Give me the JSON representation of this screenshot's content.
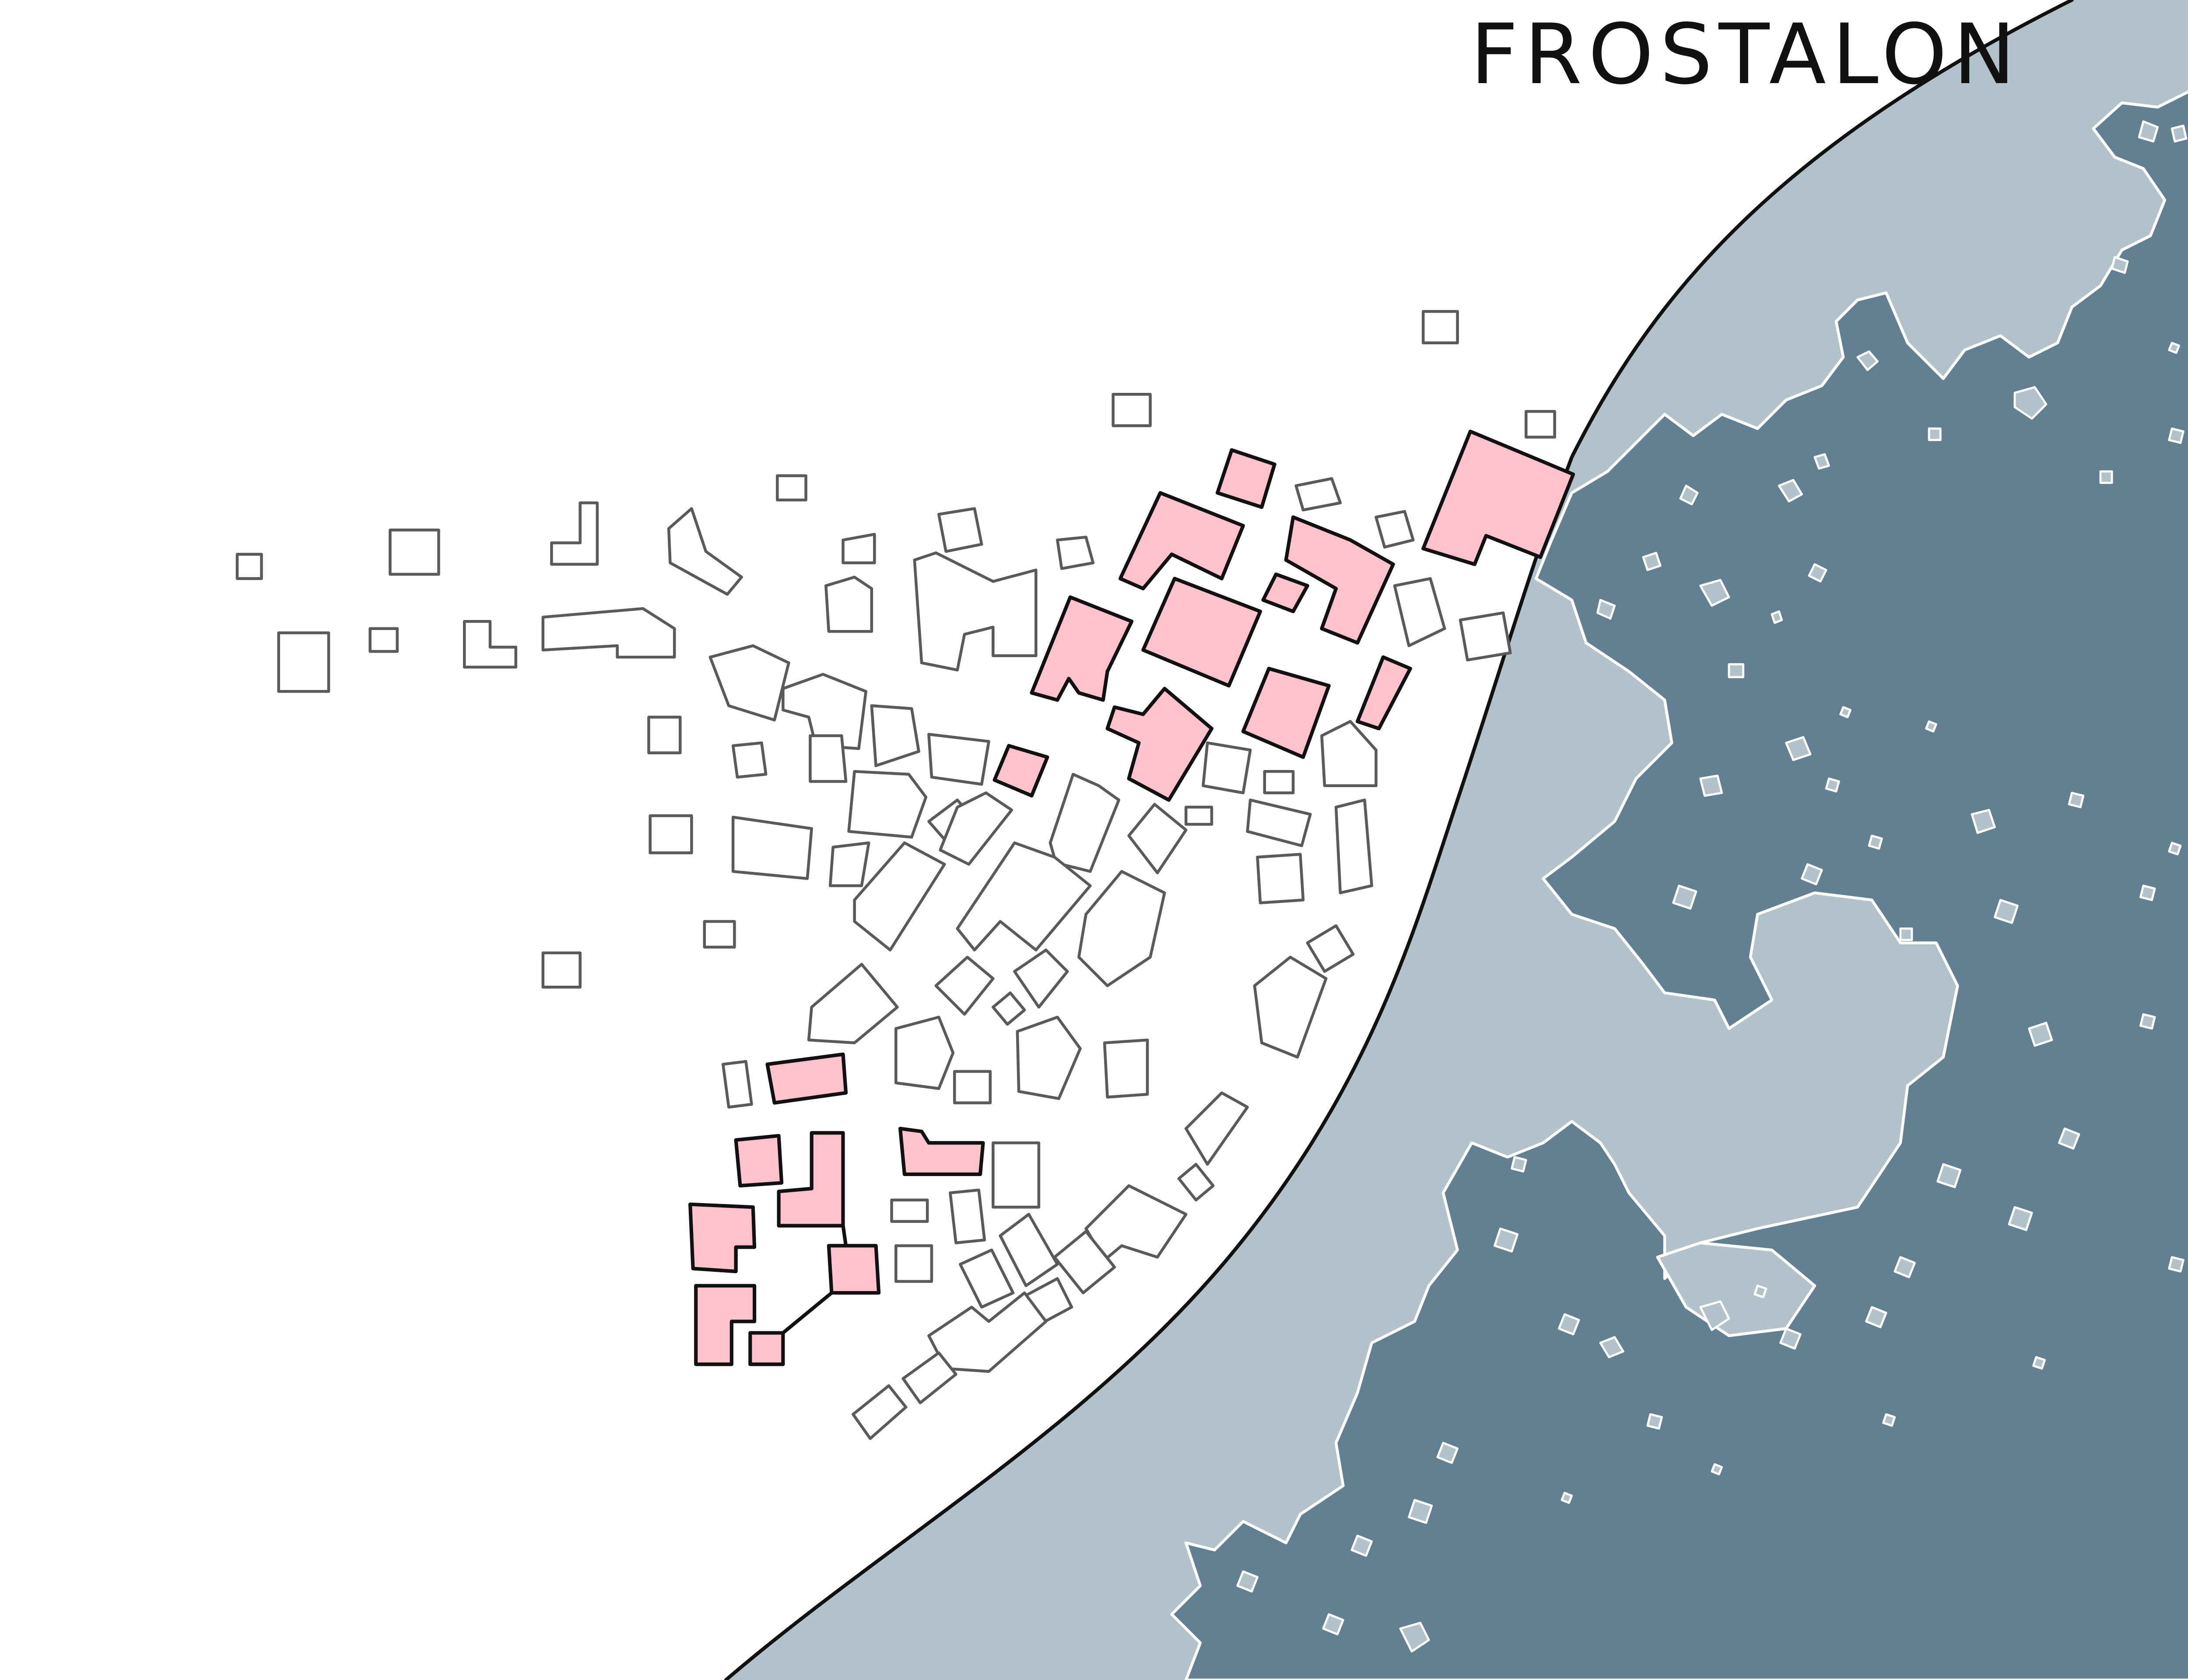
{
  "map": {
    "title": "FROSTALON",
    "colors": {
      "land": "#ffffff",
      "shallow_water": "#b2c2ca",
      "deep_water": "#637f92",
      "building_outline": "#5a5a5a",
      "highlighted_building_fill": "#ffc2cc",
      "highlighted_building_outline": "#111111",
      "coastline": "#111111",
      "shoal_outline": "#ffffff"
    },
    "features": [
      "land",
      "coastline",
      "shallow-water",
      "deep-water",
      "buildings",
      "highlighted-buildings",
      "ice-floes"
    ]
  }
}
